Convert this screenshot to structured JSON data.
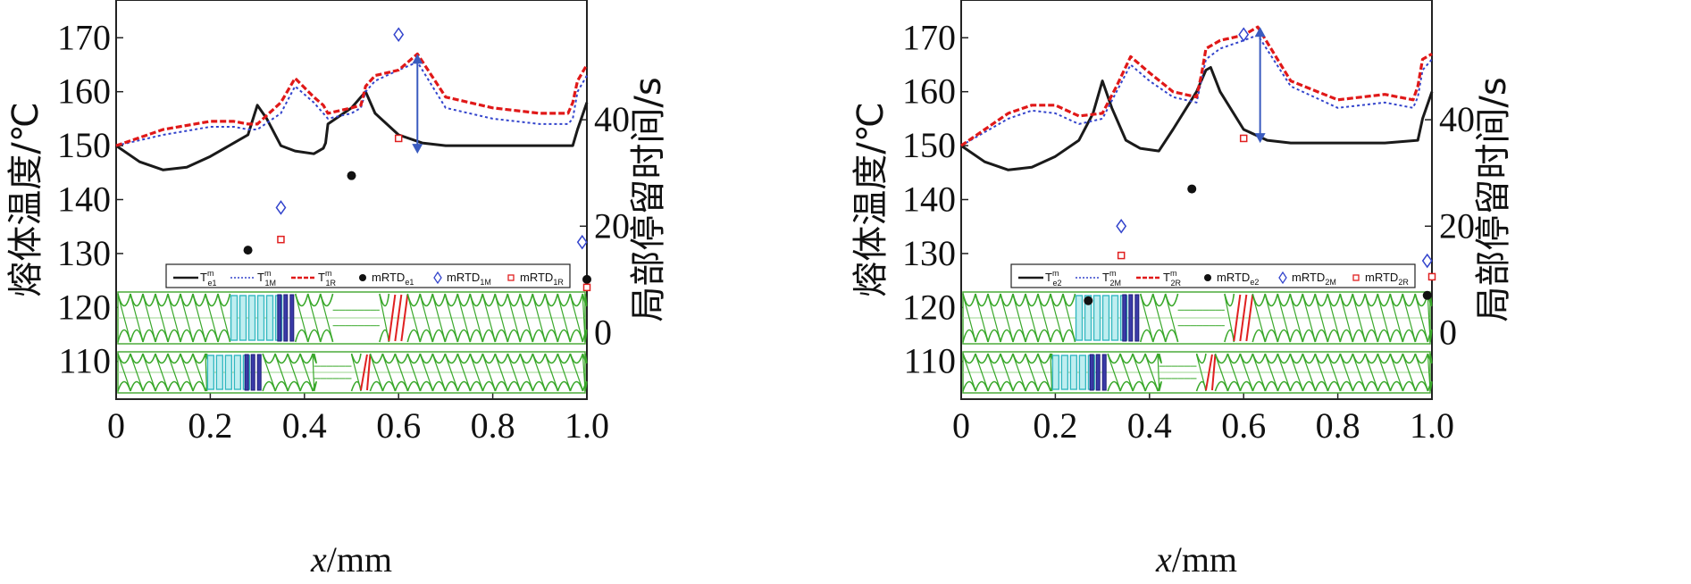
{
  "chart_data": [
    {
      "type": "line",
      "xlabel_italic": "x",
      "xlabel_unit": "/mm",
      "ylabel_left": "熔体温度/℃",
      "ylabel_right": "局部停留时间/s",
      "x_ticks": [
        "0",
        "0.2",
        "0.4",
        "0.6",
        "0.8",
        "1.0"
      ],
      "y_ticks_left": [
        "110",
        "120",
        "130",
        "140",
        "150",
        "160",
        "170"
      ],
      "y_ticks_right": [
        "0",
        "20",
        "40"
      ],
      "xlim": [
        0,
        1.0
      ],
      "ylim_left": [
        103,
        177
      ],
      "ylim_right": [
        -12.5,
        62.5
      ],
      "legend": [
        {
          "base": "T",
          "sup": "m",
          "sub": "e1",
          "style": "solid-black"
        },
        {
          "base": "T",
          "sup": "m",
          "sub": "1M",
          "style": "dotted-blue"
        },
        {
          "base": "T",
          "sup": "m",
          "sub": "1R",
          "style": "dashed-red"
        },
        {
          "base": "mRTD",
          "sup": "",
          "sub": "e1",
          "style": "dot-black"
        },
        {
          "base": "mRTD",
          "sup": "",
          "sub": "1M",
          "style": "diamond-blue"
        },
        {
          "base": "mRTD",
          "sup": "",
          "sub": "1R",
          "style": "square-red"
        }
      ],
      "series": [
        {
          "key": "Te",
          "x": [
            0,
            0.05,
            0.1,
            0.15,
            0.2,
            0.25,
            0.28,
            0.3,
            0.32,
            0.35,
            0.38,
            0.42,
            0.44,
            0.445,
            0.45,
            0.5,
            0.52,
            0.53,
            0.55,
            0.6,
            0.65,
            0.7,
            0.8,
            0.9,
            0.97,
            0.98,
            1.0
          ],
          "y": [
            150,
            147,
            145.5,
            146,
            148,
            150.5,
            152,
            157.5,
            155,
            150,
            149,
            148.5,
            149.5,
            150.5,
            154,
            157,
            159,
            160,
            156,
            152,
            150.5,
            150,
            150,
            150,
            150,
            153,
            158
          ]
        },
        {
          "key": "TM",
          "x": [
            0,
            0.1,
            0.2,
            0.25,
            0.28,
            0.3,
            0.35,
            0.38,
            0.42,
            0.44,
            0.45,
            0.5,
            0.52,
            0.53,
            0.55,
            0.6,
            0.64,
            0.7,
            0.8,
            0.9,
            0.96,
            0.97,
            0.98,
            1.0
          ],
          "y": [
            150,
            152,
            153.5,
            153.5,
            153,
            153,
            156,
            161,
            158,
            156,
            155,
            156,
            157,
            160,
            162,
            164,
            165.5,
            157,
            155,
            154,
            154,
            155,
            160,
            163
          ]
        },
        {
          "key": "TR",
          "x": [
            0,
            0.1,
            0.2,
            0.25,
            0.28,
            0.3,
            0.35,
            0.38,
            0.42,
            0.44,
            0.45,
            0.5,
            0.52,
            0.53,
            0.55,
            0.6,
            0.64,
            0.7,
            0.8,
            0.9,
            0.96,
            0.97,
            0.98,
            1.0
          ],
          "y": [
            150,
            153,
            154.5,
            154.5,
            154,
            154,
            158,
            162.5,
            159,
            157.5,
            156,
            157,
            157.5,
            161,
            163,
            164,
            167,
            159,
            157,
            156,
            156,
            158,
            162,
            165
          ]
        }
      ],
      "scatter": [
        {
          "key": "mRTD_e",
          "x": [
            0.28,
            0.5,
            1.0
          ],
          "y": [
            15.5,
            29.5,
            10
          ]
        },
        {
          "key": "mRTD_M",
          "x": [
            0.35,
            0.6,
            0.99
          ],
          "y": [
            23.5,
            56,
            17
          ]
        },
        {
          "key": "mRTD_R",
          "x": [
            0.35,
            0.6,
            1.0
          ],
          "y": [
            17.5,
            36.5,
            8.5
          ]
        }
      ],
      "arrow": {
        "x": 0.64,
        "y_from": 167,
        "y_to": 148.5
      }
    },
    {
      "type": "line",
      "xlabel_italic": "x",
      "xlabel_unit": "/mm",
      "ylabel_left": "熔体温度/℃",
      "ylabel_right": "局部停留时间/s",
      "x_ticks": [
        "0",
        "0.2",
        "0.4",
        "0.6",
        "0.8",
        "1.0"
      ],
      "y_ticks_left": [
        "110",
        "120",
        "130",
        "140",
        "150",
        "160",
        "170"
      ],
      "y_ticks_right": [
        "0",
        "20",
        "40"
      ],
      "xlim": [
        0,
        1.0
      ],
      "ylim_left": [
        103,
        177
      ],
      "ylim_right": [
        -12.5,
        62.5
      ],
      "legend": [
        {
          "base": "T",
          "sup": "m",
          "sub": "e2",
          "style": "solid-black"
        },
        {
          "base": "T",
          "sup": "m",
          "sub": "2M",
          "style": "dotted-blue"
        },
        {
          "base": "T",
          "sup": "m",
          "sub": "2R",
          "style": "dashed-red"
        },
        {
          "base": "mRTD",
          "sup": "",
          "sub": "e2",
          "style": "dot-black"
        },
        {
          "base": "mRTD",
          "sup": "",
          "sub": "2M",
          "style": "diamond-blue"
        },
        {
          "base": "mRTD",
          "sup": "",
          "sub": "2R",
          "style": "square-red"
        }
      ],
      "series": [
        {
          "key": "Te",
          "x": [
            0,
            0.05,
            0.1,
            0.15,
            0.2,
            0.25,
            0.28,
            0.3,
            0.32,
            0.35,
            0.38,
            0.42,
            0.45,
            0.5,
            0.52,
            0.53,
            0.55,
            0.6,
            0.65,
            0.7,
            0.8,
            0.9,
            0.97,
            0.98,
            1.0
          ],
          "y": [
            150,
            147,
            145.5,
            146,
            148,
            151,
            156,
            162,
            157,
            151,
            149.5,
            149,
            153,
            160,
            164,
            164.5,
            160,
            153,
            151,
            150.5,
            150.5,
            150.5,
            151,
            155,
            160
          ]
        },
        {
          "key": "TM",
          "x": [
            0,
            0.1,
            0.15,
            0.2,
            0.25,
            0.3,
            0.33,
            0.36,
            0.4,
            0.45,
            0.5,
            0.51,
            0.52,
            0.55,
            0.6,
            0.63,
            0.7,
            0.8,
            0.9,
            0.96,
            0.97,
            0.98,
            1.0
          ],
          "y": [
            150,
            155,
            156.5,
            156,
            154,
            155,
            160,
            165,
            162,
            159,
            158,
            162,
            166,
            168,
            169.5,
            170.5,
            161,
            157,
            158,
            157,
            159,
            164,
            166
          ]
        },
        {
          "key": "TR",
          "x": [
            0,
            0.1,
            0.15,
            0.2,
            0.25,
            0.3,
            0.33,
            0.36,
            0.4,
            0.45,
            0.5,
            0.51,
            0.52,
            0.55,
            0.6,
            0.63,
            0.7,
            0.8,
            0.9,
            0.96,
            0.97,
            0.98,
            1.0
          ],
          "y": [
            150,
            156,
            157.5,
            157.5,
            155.5,
            156,
            161,
            166.5,
            163.5,
            160,
            159,
            163,
            168,
            169.5,
            170.5,
            172,
            162,
            158.5,
            159.5,
            158.5,
            161,
            166,
            167
          ]
        }
      ],
      "scatter": [
        {
          "key": "mRTD_e",
          "x": [
            0.27,
            0.49,
            0.99
          ],
          "y": [
            6,
            27,
            7
          ]
        },
        {
          "key": "mRTD_M",
          "x": [
            0.34,
            0.6,
            0.99
          ],
          "y": [
            20,
            56,
            13.5
          ]
        },
        {
          "key": "mRTD_R",
          "x": [
            0.34,
            0.6,
            1.0
          ],
          "y": [
            14.5,
            36.5,
            10.5
          ]
        }
      ],
      "arrow": {
        "x": 0.635,
        "y_from": 172,
        "y_to": 150.5
      }
    }
  ]
}
